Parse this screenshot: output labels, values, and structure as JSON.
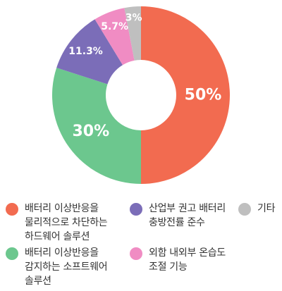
{
  "chart_data": {
    "type": "pie",
    "style": "donut",
    "grid": false,
    "legend_placement": "bottom",
    "slices": [
      {
        "label": "배터리 이상반응을\n물리적으로 차단하는\n하드웨어 솔루션",
        "value": 50,
        "value_label": "50%",
        "color": "#F26B50"
      },
      {
        "label": "배터리 이상반응을\n감지하는 소프트웨어\n솔루션",
        "value": 30,
        "value_label": "30%",
        "color": "#6CC78E"
      },
      {
        "label": "산업부 권고 배터리\n충방전률 준수",
        "value": 11.3,
        "value_label": "11.3%",
        "color": "#7B6DB8"
      },
      {
        "label": "외함 내외부 온습도\n조절 기능",
        "value": 5.7,
        "value_label": "5.7%",
        "color": "#F08CC3"
      },
      {
        "label": "기타",
        "value": 3,
        "value_label": "3%",
        "color": "#BFBFBF"
      }
    ]
  }
}
